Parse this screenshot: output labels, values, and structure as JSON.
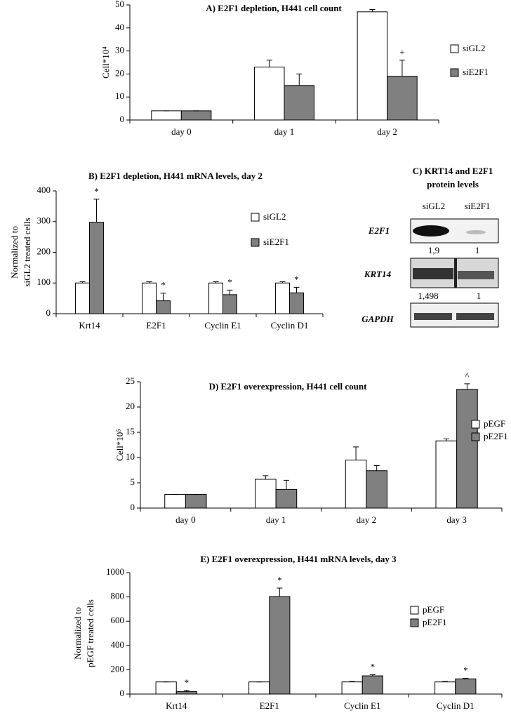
{
  "chart_data": [
    {
      "type": "bar",
      "title": "A)    E2F1 depletion, H441 cell count",
      "ylabel": [
        "Cell*10⁴"
      ],
      "categories": [
        "day 0",
        "day 1",
        "day 2"
      ],
      "series": [
        {
          "name": "siGL2",
          "color": "#ffffff",
          "values": [
            4,
            23,
            47
          ],
          "errors": [
            0,
            3,
            1
          ],
          "annotations": [
            null,
            null,
            null
          ]
        },
        {
          "name": "siE2F1",
          "color": "#808080",
          "values": [
            4,
            15,
            19
          ],
          "errors": [
            0,
            5,
            7
          ],
          "annotations": [
            null,
            null,
            "+"
          ]
        }
      ],
      "ylim": [
        0,
        50
      ],
      "yticks": [
        0,
        10,
        20,
        30,
        40,
        50
      ],
      "legend": "right"
    },
    {
      "type": "bar",
      "title": "B) E2F1 depletion, H441 mRNA levels, day 2",
      "ylabel": [
        "Normalized to",
        "siGL2 treated cells"
      ],
      "categories": [
        "Krt14",
        "E2F1",
        "Cyclin E1",
        "Cyclin D1"
      ],
      "series": [
        {
          "name": "siGL2",
          "color": "#ffffff",
          "values": [
            100,
            100,
            100,
            100
          ],
          "errors": [
            4,
            4,
            4,
            4
          ],
          "annotations": [
            null,
            null,
            null,
            null
          ]
        },
        {
          "name": "siE2F1",
          "color": "#808080",
          "values": [
            298,
            42,
            62,
            68
          ],
          "errors": [
            75,
            25,
            15,
            18
          ],
          "annotations": [
            "*",
            "*",
            "*",
            "*"
          ]
        }
      ],
      "ylim": [
        0,
        400
      ],
      "yticks": [
        0,
        100,
        200,
        300,
        400
      ],
      "legend": "right"
    },
    {
      "type": "bar",
      "title": "D) E2F1 overexpression, H441 cell count",
      "ylabel": [
        "Cell*10⁵"
      ],
      "categories": [
        "day 0",
        "day 1",
        "day 2",
        "day 3"
      ],
      "series": [
        {
          "name": "pEGF",
          "color": "#ffffff",
          "values": [
            2.7,
            5.7,
            9.5,
            13.3
          ],
          "errors": [
            0,
            0.7,
            2.6,
            0.4
          ],
          "annotations": [
            null,
            null,
            null,
            null
          ]
        },
        {
          "name": "pE2F1",
          "color": "#808080",
          "values": [
            2.7,
            3.7,
            7.4,
            23.5
          ],
          "errors": [
            0,
            1.8,
            1,
            1.1
          ],
          "annotations": [
            null,
            null,
            null,
            "^"
          ]
        }
      ],
      "ylim": [
        0,
        25
      ],
      "yticks": [
        0,
        5,
        10,
        15,
        20,
        25
      ],
      "legend": "right"
    },
    {
      "type": "bar",
      "title": "E) E2F1 overexpression, H441 mRNA levels, day 3",
      "ylabel": [
        "Normalized to",
        "pEGF treated cells"
      ],
      "categories": [
        "Krt14",
        "E2F1",
        "Cyclin E1",
        "Cyclin D1"
      ],
      "series": [
        {
          "name": "pEGF",
          "color": "#ffffff",
          "values": [
            100,
            100,
            100,
            100
          ],
          "errors": [
            0,
            0,
            3,
            3
          ],
          "annotations": [
            null,
            null,
            null,
            null
          ]
        },
        {
          "name": "pE2F1",
          "color": "#808080",
          "values": [
            20,
            803,
            150,
            125
          ],
          "errors": [
            10,
            70,
            10,
            5
          ],
          "annotations": [
            "*",
            "*",
            "*",
            "*"
          ]
        }
      ],
      "ylim": [
        0,
        1000
      ],
      "yticks": [
        0,
        200,
        400,
        600,
        800,
        1000
      ],
      "legend": "right"
    }
  ],
  "blot": {
    "title": [
      "C) KRT14 and E2F1",
      "protein levels"
    ],
    "lanes": [
      "siGL2",
      "siE2F1"
    ],
    "rows": [
      {
        "label": "E2F1",
        "quant": [
          "1,9",
          "1"
        ]
      },
      {
        "label": "KRT14",
        "quant": [
          "1,498",
          "1"
        ]
      },
      {
        "label": "GAPDH"
      }
    ]
  }
}
